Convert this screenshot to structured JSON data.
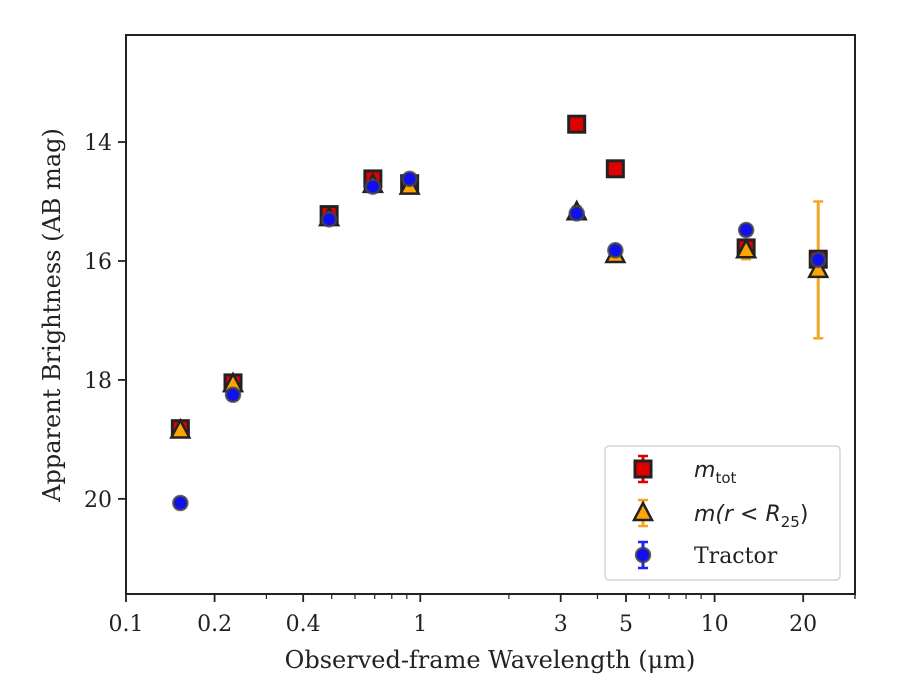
{
  "chart_data": {
    "type": "scatter",
    "xlabel": "Observed-frame Wavelength (μm)",
    "ylabel": "Apparent Brightness (AB mag)",
    "x_scale": "log",
    "xlim": [
      0.1,
      30
    ],
    "ylim": [
      21.6,
      12.2
    ],
    "y_inverted": true,
    "grid": false,
    "legend_position": "bottom-right",
    "x_ticks": [
      {
        "value": 0.1,
        "label": "0.1"
      },
      {
        "value": 0.2,
        "label": "0.2"
      },
      {
        "value": 0.4,
        "label": "0.4"
      },
      {
        "value": 1,
        "label": "1"
      },
      {
        "value": 3,
        "label": "3"
      },
      {
        "value": 5,
        "label": "5"
      },
      {
        "value": 10,
        "label": "10"
      },
      {
        "value": 20,
        "label": "20"
      }
    ],
    "y_ticks": [
      {
        "value": 14,
        "label": "14"
      },
      {
        "value": 16,
        "label": "16"
      },
      {
        "value": 18,
        "label": "18"
      },
      {
        "value": 20,
        "label": "20"
      }
    ],
    "series": [
      {
        "name": "m_tot",
        "legend_main": "m",
        "legend_sub": "tot",
        "marker": "square",
        "color": "#e00000",
        "errorbar_color": "#e00000",
        "points": [
          {
            "x": 0.153,
            "y": 18.82,
            "err": 0.1
          },
          {
            "x": 0.231,
            "y": 18.05,
            "err": 0.1
          },
          {
            "x": 0.49,
            "y": 15.22,
            "err": 0.1
          },
          {
            "x": 0.69,
            "y": 14.62,
            "err": 0.1
          },
          {
            "x": 0.92,
            "y": 14.7,
            "err": 0.1
          },
          {
            "x": 3.4,
            "y": 13.7,
            "err": 0.1
          },
          {
            "x": 4.6,
            "y": 14.45,
            "err": 0.1
          },
          {
            "x": 12.8,
            "y": 15.78,
            "err": 0.1
          },
          {
            "x": 22.5,
            "y": 15.97,
            "err": 0.1
          }
        ]
      },
      {
        "name": "m(r < R25)",
        "legend_main": "m(r < R",
        "legend_sub": "25",
        "legend_suffix": ")",
        "marker": "triangle",
        "color": "#ffa500",
        "errorbar_color": "#f5a623",
        "points": [
          {
            "x": 0.153,
            "y": 18.85,
            "err": 0.1
          },
          {
            "x": 0.231,
            "y": 18.07,
            "err": 0.1
          },
          {
            "x": 0.49,
            "y": 15.28,
            "err": 0.1
          },
          {
            "x": 0.69,
            "y": 14.72,
            "err": 0.1
          },
          {
            "x": 0.92,
            "y": 14.75,
            "err": 0.1
          },
          {
            "x": 3.4,
            "y": 15.18,
            "err": 0.1
          },
          {
            "x": 4.6,
            "y": 15.9,
            "err": 0.1
          },
          {
            "x": 12.8,
            "y": 15.82,
            "err": 0.15
          },
          {
            "x": 22.5,
            "y": 16.15,
            "err": 1.15
          }
        ]
      },
      {
        "name": "Tractor",
        "legend_main": "Tractor",
        "marker": "circle",
        "color": "#1010ee",
        "errorbar_color": "#2020ff",
        "points": [
          {
            "x": 0.153,
            "y": 20.07,
            "err": 0.08
          },
          {
            "x": 0.231,
            "y": 18.25,
            "err": 0.08
          },
          {
            "x": 0.49,
            "y": 15.3,
            "err": 0.08
          },
          {
            "x": 0.69,
            "y": 14.75,
            "err": 0.08
          },
          {
            "x": 0.92,
            "y": 14.62,
            "err": 0.08
          },
          {
            "x": 3.4,
            "y": 15.2,
            "err": 0.08
          },
          {
            "x": 4.6,
            "y": 15.82,
            "err": 0.08
          },
          {
            "x": 12.8,
            "y": 15.48,
            "err": 0.08
          },
          {
            "x": 22.5,
            "y": 15.98,
            "err": 0.08
          }
        ]
      }
    ]
  }
}
